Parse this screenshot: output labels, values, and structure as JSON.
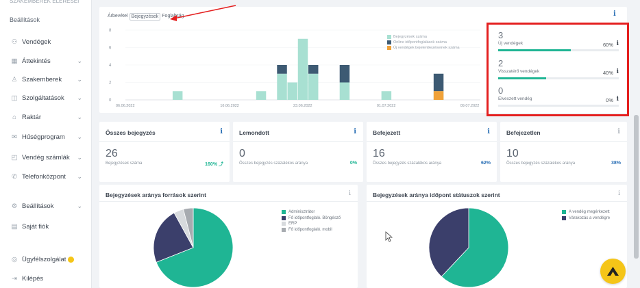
{
  "sidebar": {
    "top_strip": "SZAKEMBEREK ELÉRÉSEI",
    "title": "Beállítások",
    "items": [
      {
        "label": "Vendégek",
        "icon": "guests-icon",
        "chevron": false
      },
      {
        "label": "Áttekintés",
        "icon": "overview-icon",
        "chevron": true
      },
      {
        "label": "Szakemberek",
        "icon": "person-icon",
        "chevron": true
      },
      {
        "label": "Szolgáltatások",
        "icon": "services-icon",
        "chevron": true
      },
      {
        "label": "Raktár",
        "icon": "warehouse-icon",
        "chevron": true
      },
      {
        "label": "Hűségprogram",
        "icon": "loyalty-icon",
        "chevron": true
      },
      {
        "label": "Vendég számlák",
        "icon": "invoice-icon",
        "chevron": true
      },
      {
        "label": "Telefonközpont",
        "icon": "phone-icon",
        "chevron": true
      },
      {
        "label": "Beállítások",
        "icon": "gear-icon",
        "chevron": true
      },
      {
        "label": "Saját fiók",
        "icon": "account-icon",
        "chevron": false
      },
      {
        "label": "Ügyfélszolgálat",
        "icon": "support-icon",
        "chevron": false
      },
      {
        "label": "Kilépés",
        "icon": "logout-icon",
        "chevron": false
      }
    ]
  },
  "top_card": {
    "tabs": [
      "Árbevétel",
      "Bejegyzések",
      "Foglaltság"
    ],
    "active_tab": "Bejegyzések",
    "info": "i"
  },
  "chart_data": {
    "type": "bar",
    "stacked": true,
    "x_ticks": [
      "06.06.2022",
      "16.06.2022",
      "23.06.2022",
      "01.07.2022",
      "09.07.2022"
    ],
    "ylim": [
      0,
      8
    ],
    "y_ticks": [
      0,
      2,
      4,
      6,
      8
    ],
    "series": [
      {
        "name": "Bejegyzések száma",
        "color": "#a8e0d2"
      },
      {
        "name": "Online időpontfoglalások száma",
        "color": "#3d5a73"
      },
      {
        "name": "Új vendégek bejelentkezéseinek száma",
        "color": "#f0a23a"
      }
    ],
    "bars": [
      {
        "day": 5,
        "values": [
          1,
          0,
          0
        ]
      },
      {
        "day": 13,
        "values": [
          1,
          0,
          0
        ]
      },
      {
        "day": 15,
        "values": [
          3,
          1,
          0
        ]
      },
      {
        "day": 16,
        "values": [
          2,
          0,
          0
        ]
      },
      {
        "day": 17,
        "values": [
          7,
          0,
          0
        ]
      },
      {
        "day": 18,
        "values": [
          3,
          1,
          0
        ]
      },
      {
        "day": 21,
        "values": [
          2,
          2,
          0
        ]
      },
      {
        "day": 25,
        "values": [
          1,
          0,
          0
        ]
      },
      {
        "day": 30,
        "values": [
          1,
          2,
          0
        ]
      },
      {
        "day": 30,
        "values": [
          0,
          0,
          1
        ]
      }
    ]
  },
  "stats": [
    {
      "value": "3",
      "label": "Új vendégek",
      "percent": "60%",
      "fraction": 0.6
    },
    {
      "value": "2",
      "label": "Visszatérő vendégek",
      "percent": "40%",
      "fraction": 0.4
    },
    {
      "value": "0",
      "label": "Elveszett vendég",
      "percent": "0%",
      "fraction": 0
    }
  ],
  "kpis": [
    {
      "title": "Összes bejegyzés",
      "value": "26",
      "sub": "Bejegyzések száma",
      "pct": "160% ⤴",
      "pct_color": "green"
    },
    {
      "title": "Lemondott",
      "value": "0",
      "sub": "Összes bejegyzés százalékos aránya",
      "pct": "0%",
      "pct_color": "green"
    },
    {
      "title": "Befejezett",
      "value": "16",
      "sub": "Összes bejegyzés százalékos aránya",
      "pct": "62%",
      "pct_color": "blue"
    },
    {
      "title": "Befejezetlen",
      "value": "10",
      "sub": "Összes bejegyzés százalékos aránya",
      "pct": "38%",
      "pct_color": "blue"
    }
  ],
  "pie_left": {
    "title": "Bejegyzések aránya források szerint",
    "legend": [
      {
        "label": "Adminisztrátor",
        "color": "#1fb594"
      },
      {
        "label": "Fő időpontfoglaló. Böngésző",
        "color": "#3b3f6b"
      },
      {
        "label": "ERP",
        "color": "#d7dadd"
      },
      {
        "label": "Fő időpontfoglaló. mobil",
        "color": "#a7abb0"
      }
    ],
    "values": [
      69,
      23,
      4,
      4
    ]
  },
  "pie_right": {
    "title": "Bejegyzések aránya időpont státuszok szerint",
    "legend": [
      {
        "label": "A vendég megérkezett",
        "color": "#1fb594"
      },
      {
        "label": "Várakozás a vendégre",
        "color": "#3b3f6b"
      }
    ],
    "values": [
      62,
      38
    ]
  }
}
